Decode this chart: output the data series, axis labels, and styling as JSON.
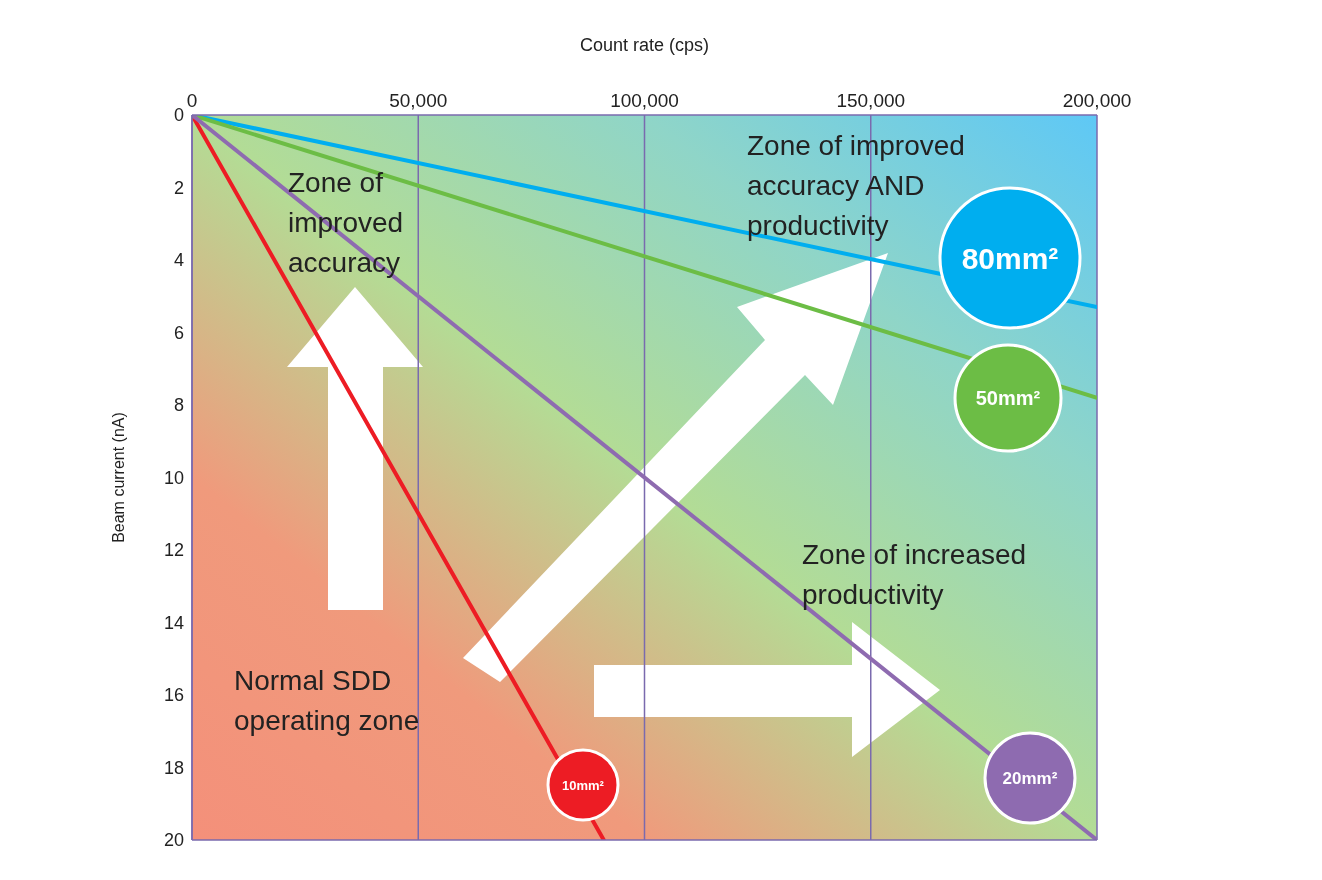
{
  "chart_data": {
    "type": "line",
    "xlabel": "Count rate (cps)",
    "ylabel": "Beam current (nA)",
    "xlim": [
      0,
      200000
    ],
    "xticks": [
      0,
      {
        "value": 50000,
        "label": "50,000"
      },
      {
        "value": 100000,
        "label": "100,000"
      },
      {
        "value": 150000,
        "label": "150,000"
      },
      {
        "value": 200000,
        "label": "200,000"
      }
    ],
    "ylim": [
      20,
      0
    ],
    "yticks": [
      0,
      2,
      4,
      6,
      8,
      10,
      12,
      14,
      16,
      18,
      20
    ],
    "grid": "x",
    "series": [
      {
        "name": "80mm²",
        "color": "#00aeef",
        "x": [
          0,
          200000
        ],
        "values": [
          0,
          5.3
        ]
      },
      {
        "name": "50mm²",
        "color": "#6cbd45",
        "x": [
          0,
          200000
        ],
        "values": [
          0,
          7.8
        ]
      },
      {
        "name": "10mm²",
        "color": "#ed1c24",
        "x": [
          0,
          91000
        ],
        "values": [
          0,
          20
        ]
      },
      {
        "name": "20mm²",
        "color": "#8e6bb0",
        "x": [
          0,
          200000
        ],
        "values": [
          0,
          20
        ]
      }
    ],
    "annotations": [
      "Zone of improved accuracy",
      "Zone of improved accuracy AND productivity",
      "Zone of increased productivity",
      "Normal SDD operating zone"
    ]
  }
}
